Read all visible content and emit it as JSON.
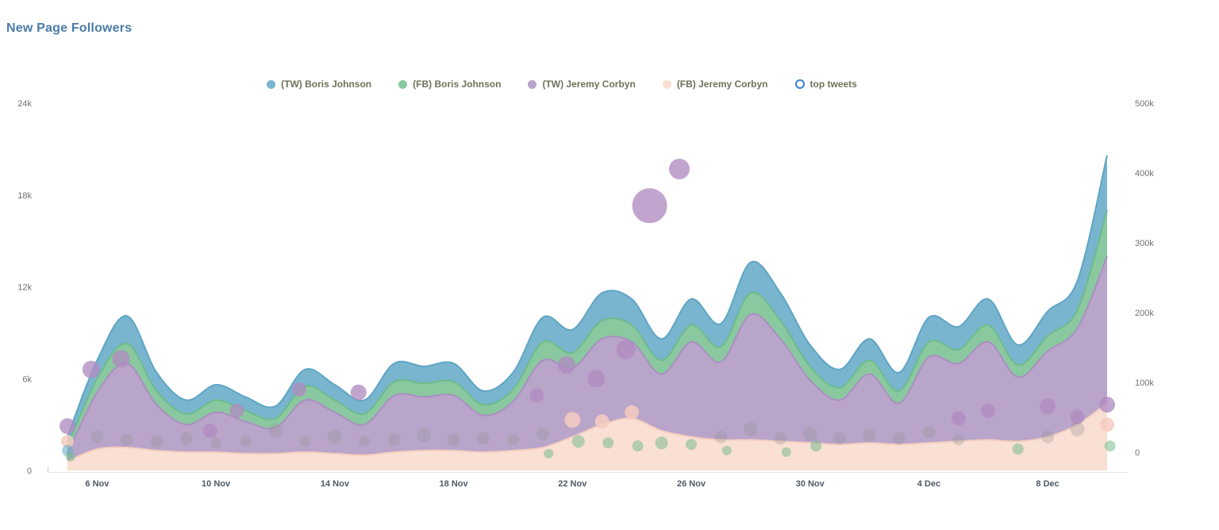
{
  "title": "New Page Followers",
  "colors": {
    "tw_boris": "#79b5cf",
    "fb_boris": "#8ac8a0",
    "tw_jeremy": "#b9a4ca",
    "fb_jeremy": "#fadfd4",
    "title": "#4a7ba6",
    "legend_text": "#6e7259",
    "top_tweets_ring": "#3b7fd4"
  },
  "colors_stroke": {
    "tw_boris": "#5fa5c4",
    "fb_boris": "#6cbb8b",
    "tw_jeremy": "#a98fc0",
    "fb_jeremy": "#f3cdbd"
  },
  "bubble_colors": {
    "purple": "rgba(176,140,192,0.78)",
    "pink": "rgba(246,203,192,0.85)",
    "green": "rgba(118,188,140,0.55)",
    "gray": "rgba(150,150,150,0.32)",
    "blue": "rgba(110,175,200,0.6)"
  },
  "legend": {
    "items": [
      {
        "key": "tw_boris",
        "label": "(TW) Boris Johnson",
        "ring": false
      },
      {
        "key": "fb_boris",
        "label": "(FB) Boris Johnson",
        "ring": false
      },
      {
        "key": "tw_jeremy",
        "label": "(TW) Jeremy Corbyn",
        "ring": false
      },
      {
        "key": "fb_jeremy",
        "label": "(FB) Jeremy Corbyn",
        "ring": false
      },
      {
        "key": "top_tweets",
        "label": "top tweets",
        "ring": true
      }
    ]
  },
  "axes": {
    "left": {
      "labels": [
        "0",
        "6k",
        "12k",
        "18k",
        "24k"
      ],
      "values": [
        0,
        6000,
        12000,
        18000,
        24000
      ]
    },
    "right": {
      "labels": [
        "0",
        "100k",
        "200k",
        "300k",
        "400k",
        "500k"
      ],
      "values": [
        0,
        100000,
        200000,
        300000,
        400000,
        500000
      ]
    },
    "x": {
      "tick_labels": [
        "6 Nov",
        "10 Nov",
        "14 Nov",
        "18 Nov",
        "22 Nov",
        "26 Nov",
        "30 Nov",
        "4 Dec",
        "8 Dec"
      ],
      "tick_day_indices": [
        1,
        5,
        9,
        13,
        17,
        21,
        25,
        29,
        33
      ]
    }
  },
  "chart_data": {
    "type": "area",
    "stacked": true,
    "overlay": "bubble",
    "title": "New Page Followers",
    "ylim": [
      0,
      24000
    ],
    "ylim_right": [
      0,
      500000
    ],
    "categories": [
      "5 Nov",
      "6 Nov",
      "7 Nov",
      "8 Nov",
      "9 Nov",
      "10 Nov",
      "11 Nov",
      "12 Nov",
      "13 Nov",
      "14 Nov",
      "15 Nov",
      "16 Nov",
      "17 Nov",
      "18 Nov",
      "19 Nov",
      "20 Nov",
      "21 Nov",
      "22 Nov",
      "23 Nov",
      "24 Nov",
      "25 Nov",
      "26 Nov",
      "27 Nov",
      "28 Nov",
      "29 Nov",
      "30 Nov",
      "1 Dec",
      "2 Dec",
      "3 Dec",
      "4 Dec",
      "5 Dec",
      "6 Dec",
      "7 Dec",
      "8 Dec",
      "9 Dec",
      "10 Dec"
    ],
    "stack_order": [
      "fb_jeremy",
      "tw_jeremy",
      "fb_boris",
      "tw_boris"
    ],
    "series": [
      {
        "name": "(TW) Boris Johnson",
        "key": "tw_boris",
        "values": [
          600,
          1200,
          1800,
          1200,
          900,
          1000,
          900,
          800,
          1100,
          1000,
          900,
          1200,
          1100,
          1200,
          900,
          1100,
          1600,
          1500,
          1800,
          1700,
          1400,
          1700,
          1500,
          2000,
          1800,
          1400,
          1200,
          1400,
          1200,
          1600,
          1500,
          1700,
          1300,
          1600,
          1900,
          3600
        ]
      },
      {
        "name": "(FB) Boris Johnson",
        "key": "fb_boris",
        "values": [
          500,
          900,
          1300,
          900,
          700,
          800,
          700,
          600,
          900,
          800,
          700,
          900,
          900,
          900,
          700,
          800,
          1200,
          1000,
          1200,
          1100,
          900,
          1100,
          1000,
          1400,
          1200,
          900,
          800,
          900,
          800,
          1000,
          900,
          1100,
          800,
          1000,
          1200,
          3000
        ]
      },
      {
        "name": "(TW) Jeremy Corbyn",
        "key": "tw_jeremy",
        "values": [
          500,
          3700,
          5500,
          3000,
          1800,
          2600,
          2100,
          1700,
          3400,
          2700,
          2000,
          3700,
          3500,
          3600,
          2400,
          3200,
          5700,
          4500,
          5600,
          5000,
          3700,
          6200,
          5100,
          8200,
          6700,
          4100,
          2900,
          4500,
          2700,
          5600,
          5100,
          6400,
          4200,
          5600,
          6300,
          9600
        ]
      },
      {
        "name": "(FB) Jeremy Corbyn",
        "key": "fb_jeremy",
        "values": [
          600,
          1400,
          1500,
          1300,
          1200,
          1200,
          1100,
          1100,
          1200,
          1100,
          1000,
          1200,
          1300,
          1300,
          1200,
          1300,
          1500,
          2200,
          3000,
          3400,
          2600,
          2200,
          2000,
          2000,
          1900,
          1800,
          1700,
          1800,
          1700,
          1800,
          1900,
          2000,
          1900,
          2200,
          3000,
          4400
        ]
      }
    ],
    "bubbles_format": "[day_index, value, radius_px, color]",
    "bubbles": [
      [
        0,
        2900,
        10,
        "purple"
      ],
      [
        0,
        1900,
        8,
        "pink"
      ],
      [
        0,
        1300,
        7,
        "blue"
      ],
      [
        0.1,
        900,
        6,
        "green"
      ],
      [
        0.8,
        6600,
        11,
        "purple"
      ],
      [
        1,
        2200,
        8,
        "gray"
      ],
      [
        1.8,
        7300,
        11,
        "purple"
      ],
      [
        2,
        2000,
        8,
        "gray"
      ],
      [
        3,
        1900,
        8,
        "gray"
      ],
      [
        4,
        2100,
        8,
        "gray"
      ],
      [
        4.8,
        2600,
        9,
        "purple"
      ],
      [
        5,
        1800,
        7,
        "gray"
      ],
      [
        5.7,
        3900,
        9,
        "purple"
      ],
      [
        6,
        1900,
        7,
        "gray"
      ],
      [
        7,
        2600,
        9,
        "gray"
      ],
      [
        7.8,
        5300,
        9,
        "purple"
      ],
      [
        8,
        1900,
        7,
        "gray"
      ],
      [
        9,
        2200,
        9,
        "gray"
      ],
      [
        9.8,
        5100,
        10,
        "purple"
      ],
      [
        10,
        1900,
        7,
        "gray"
      ],
      [
        11,
        2000,
        8,
        "gray"
      ],
      [
        12,
        2300,
        9,
        "gray"
      ],
      [
        13,
        2000,
        8,
        "gray"
      ],
      [
        14,
        2100,
        8,
        "gray"
      ],
      [
        15,
        2000,
        7,
        "gray"
      ],
      [
        15.8,
        4900,
        9,
        "purple"
      ],
      [
        16,
        2400,
        8,
        "gray"
      ],
      [
        16.2,
        1100,
        6,
        "green"
      ],
      [
        16.8,
        6900,
        11,
        "purple"
      ],
      [
        17,
        3300,
        10,
        "pink"
      ],
      [
        17.2,
        1900,
        8,
        "green"
      ],
      [
        17.8,
        6000,
        11,
        "purple"
      ],
      [
        18,
        3200,
        9,
        "pink"
      ],
      [
        18.2,
        1800,
        7,
        "green"
      ],
      [
        18.8,
        7900,
        12,
        "purple"
      ],
      [
        19,
        3800,
        9,
        "pink"
      ],
      [
        19.2,
        1600,
        7,
        "green"
      ],
      [
        19.6,
        17300,
        22,
        "purple"
      ],
      [
        20,
        1800,
        8,
        "green"
      ],
      [
        20.6,
        19700,
        13,
        "purple"
      ],
      [
        21,
        1700,
        7,
        "green"
      ],
      [
        22,
        2200,
        8,
        "gray"
      ],
      [
        22.2,
        1300,
        6,
        "green"
      ],
      [
        23,
        2700,
        9,
        "gray"
      ],
      [
        24,
        2100,
        8,
        "gray"
      ],
      [
        24.2,
        1200,
        6,
        "green"
      ],
      [
        25,
        2400,
        9,
        "gray"
      ],
      [
        25.2,
        1600,
        7,
        "green"
      ],
      [
        26,
        2100,
        8,
        "gray"
      ],
      [
        27,
        2300,
        8,
        "gray"
      ],
      [
        28,
        2100,
        8,
        "gray"
      ],
      [
        29,
        2500,
        8,
        "gray"
      ],
      [
        30,
        3400,
        9,
        "purple"
      ],
      [
        30,
        2000,
        7,
        "gray"
      ],
      [
        31,
        3900,
        9,
        "purple"
      ],
      [
        32,
        1400,
        7,
        "green"
      ],
      [
        33,
        4200,
        10,
        "purple"
      ],
      [
        33,
        2200,
        8,
        "gray"
      ],
      [
        34,
        3500,
        9,
        "purple"
      ],
      [
        34,
        2700,
        9,
        "gray"
      ],
      [
        35,
        4300,
        10,
        "purple"
      ],
      [
        35,
        3000,
        9,
        "pink"
      ],
      [
        35.1,
        1600,
        7,
        "green"
      ]
    ]
  }
}
